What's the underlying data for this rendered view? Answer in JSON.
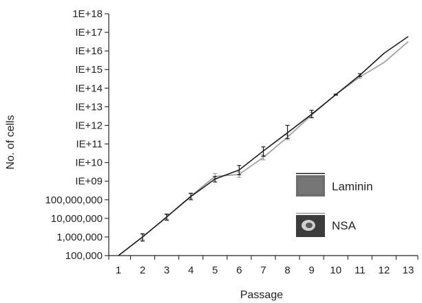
{
  "chart_data": {
    "type": "line",
    "title": "",
    "xlabel": "Passage",
    "ylabel": "No. of cells",
    "y_scale": "log10",
    "ylim": [
      100000,
      1e+18
    ],
    "xlim": [
      0.6,
      13.4
    ],
    "grid": false,
    "legend_position": "lower-right",
    "x": [
      1,
      2,
      3,
      4,
      5,
      6,
      7,
      8,
      9,
      10,
      11,
      12,
      13
    ],
    "x_tick_labels": [
      "1",
      "2",
      "3",
      "4",
      "5",
      "6",
      "7",
      "8",
      "9",
      "10",
      "11",
      "12",
      "13"
    ],
    "y_ticks": [
      {
        "value": 100000,
        "label": "100,000"
      },
      {
        "value": 1000000,
        "label": "1,000,000"
      },
      {
        "value": 10000000,
        "label": "10,000,000"
      },
      {
        "value": 100000000,
        "label": "100,000,000"
      },
      {
        "value": 1000000000.0,
        "label": "IE+09"
      },
      {
        "value": 10000000000.0,
        "label": "IE+10"
      },
      {
        "value": 100000000000.0,
        "label": "IE+11"
      },
      {
        "value": 1000000000000.0,
        "label": "IE+12"
      },
      {
        "value": 10000000000000.0,
        "label": "IE+13"
      },
      {
        "value": 100000000000000.0,
        "label": "IE+14"
      },
      {
        "value": 1000000000000000.0,
        "label": "IE+15"
      },
      {
        "value": 1e+16,
        "label": "IE+16"
      },
      {
        "value": 1e+17,
        "label": "IE+17"
      },
      {
        "value": 1e+18,
        "label": "1E+18"
      }
    ],
    "series": [
      {
        "name": "Laminin",
        "color": "#1a1a1a",
        "values": [
          100000,
          1000000,
          12000000,
          150000000,
          1300000000.0,
          4000000000.0,
          42000000000.0,
          400000000000.0,
          4000000000000.0,
          45000000000000.0,
          500000000000000.0,
          7500000000000000.0,
          6e+16
        ],
        "error": [
          [
            1,
            100000.0,
            100000.0
          ],
          [
            2,
            600000.0,
            1500000.0
          ],
          [
            3,
            8000000.0,
            17000000.0
          ],
          [
            4,
            100000000.0,
            220000000.0
          ],
          [
            5,
            900000000.0,
            1800000000.0
          ],
          [
            6,
            2200000000.0,
            7000000000.0
          ],
          [
            7,
            22000000000.0,
            70000000000.0
          ],
          [
            8,
            200000000000.0,
            1000000000000.0
          ],
          [
            9,
            2600000000000.0,
            6500000000000.0
          ],
          [
            10,
            42000000000000.0,
            48000000000000.0
          ],
          [
            11,
            420000000000000.0,
            600000000000000.0
          ]
        ]
      },
      {
        "name": "NSA",
        "color": "#999999",
        "values": [
          100000,
          1000000,
          12000000,
          160000000,
          1800000000.0,
          2300000000.0,
          19000000000.0,
          230000000000.0,
          3600000000000.0,
          45000000000000.0,
          400000000000000.0,
          2400000000000000.0,
          3.2e+16
        ],
        "error": [
          [
            1,
            100000.0,
            100000.0
          ],
          [
            2,
            700000.0,
            1400000.0
          ],
          [
            3,
            9000000.0,
            16000000.0
          ],
          [
            4,
            120000000.0,
            230000000.0
          ],
          [
            5,
            1300000000.0,
            2600000000.0
          ],
          [
            6,
            1600000000.0,
            3200000000.0
          ],
          [
            7,
            14000000000.0,
            25000000000.0
          ],
          [
            8,
            170000000000.0,
            300000000000.0
          ],
          [
            9,
            2600000000000.0,
            5000000000000.0
          ],
          [
            10,
            42000000000000.0,
            48000000000000.0
          ],
          [
            11,
            340000000000000.0,
            470000000000000.0
          ]
        ]
      }
    ]
  },
  "colors": {
    "axis": "#222222",
    "laminin_inset": "#6e6e6e",
    "nsa_inset_bg": "#3c3c3c",
    "nsa_inset_blob": "#cfcfcf"
  },
  "legend": [
    {
      "label": "Laminin",
      "line_color": "#1a1a1a",
      "inset_image": "laminin-photo-icon"
    },
    {
      "label": "NSA",
      "line_color": "#999999",
      "inset_image": "nsa-photo-icon"
    }
  ]
}
